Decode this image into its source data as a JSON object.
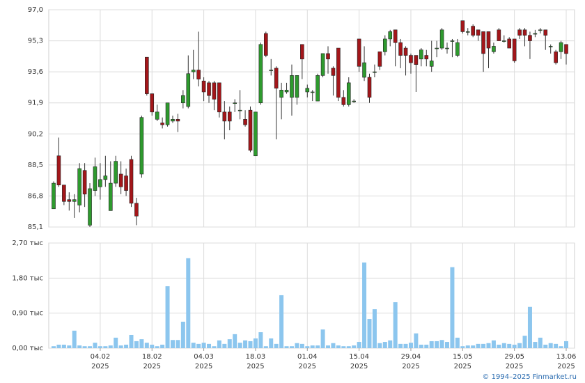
{
  "chart_data": {
    "type": "candlestick",
    "x": [
      "2025-01-22",
      "2025-01-23",
      "2025-01-24",
      "2025-01-27",
      "2025-01-28",
      "2025-01-29",
      "2025-01-30",
      "2025-01-31",
      "2025-02-03",
      "2025-02-04",
      "2025-02-05",
      "2025-02-06",
      "2025-02-07",
      "2025-02-10",
      "2025-02-11",
      "2025-02-12",
      "2025-02-13",
      "2025-02-14",
      "2025-02-17",
      "2025-02-18",
      "2025-02-19",
      "2025-02-20",
      "2025-02-21",
      "2025-02-24",
      "2025-02-25",
      "2025-02-26",
      "2025-02-27",
      "2025-02-28",
      "2025-03-03",
      "2025-03-04",
      "2025-03-05",
      "2025-03-06",
      "2025-03-07",
      "2025-03-10",
      "2025-03-11",
      "2025-03-12",
      "2025-03-13",
      "2025-03-14",
      "2025-03-17",
      "2025-03-18",
      "2025-03-19",
      "2025-03-20",
      "2025-03-21",
      "2025-03-24",
      "2025-03-25",
      "2025-03-26",
      "2025-03-27",
      "2025-03-28",
      "2025-03-31",
      "2025-04-01",
      "2025-04-02",
      "2025-04-03",
      "2025-04-04",
      "2025-04-07",
      "2025-04-08",
      "2025-04-09",
      "2025-04-10",
      "2025-04-11",
      "2025-04-14",
      "2025-04-15",
      "2025-04-16",
      "2025-04-17",
      "2025-04-18",
      "2025-04-21",
      "2025-04-22",
      "2025-04-23",
      "2025-04-24",
      "2025-04-25",
      "2025-04-28",
      "2025-04-29",
      "2025-04-30",
      "2025-05-02",
      "2025-05-05",
      "2025-05-06",
      "2025-05-07",
      "2025-05-08",
      "2025-05-12",
      "2025-05-13",
      "2025-05-14",
      "2025-05-15",
      "2025-05-16",
      "2025-05-19",
      "2025-05-20",
      "2025-05-21",
      "2025-05-22",
      "2025-05-23",
      "2025-05-26",
      "2025-05-27",
      "2025-05-28",
      "2025-05-29",
      "2025-05-30",
      "2025-06-02",
      "2025-06-03",
      "2025-06-04",
      "2025-06-05",
      "2025-06-06",
      "2025-06-09",
      "2025-06-10",
      "2025-06-11",
      "2025-06-13"
    ],
    "open": [
      86.1,
      89.0,
      87.4,
      86.6,
      86.5,
      86.3,
      88.2,
      85.2,
      87.1,
      87.3,
      87.7,
      86.0,
      87.5,
      88.0,
      87.9,
      88.8,
      86.4,
      88.0,
      94.4,
      92.4,
      91.0,
      90.8,
      90.7,
      90.9,
      91.0,
      91.9,
      91.7,
      93.6,
      93.7,
      93.1,
      93.0,
      93.0,
      93.0,
      91.4,
      91.4,
      91.9,
      91.5,
      91.0,
      91.5,
      89.0,
      91.9,
      95.7,
      93.7,
      93.8,
      92.2,
      92.5,
      92.2,
      92.2,
      95.1,
      92.5,
      92.5,
      92.0,
      93.4,
      94.6,
      93.8,
      94.9,
      92.2,
      91.8,
      92.0,
      95.4,
      93.3,
      93.3,
      93.6,
      94.7,
      94.7,
      95.4,
      95.9,
      95.2,
      94.9,
      94.5,
      94.5,
      94.3,
      94.5,
      93.9,
      94.9,
      94.9,
      94.9,
      95.3,
      94.5,
      96.4,
      95.8,
      96.1,
      95.9,
      95.8,
      95.8,
      94.7,
      95.9,
      95.3,
      95.4,
      95.4,
      95.9,
      95.9,
      95.6,
      95.7,
      95.9,
      95.9,
      95.0,
      94.7,
      94.7,
      95.1
    ],
    "high": [
      87.6,
      90.0,
      87.4,
      87.0,
      86.9,
      88.6,
      88.6,
      87.5,
      88.9,
      88.6,
      89.0,
      88.7,
      89.0,
      88.7,
      88.3,
      89.0,
      86.7,
      91.2,
      94.4,
      92.4,
      91.8,
      91.1,
      91.9,
      91.2,
      91.3,
      92.6,
      94.5,
      94.8,
      95.8,
      93.3,
      93.1,
      93.1,
      93.0,
      92.0,
      91.7,
      92.1,
      92.6,
      91.5,
      91.7,
      91.4,
      95.2,
      95.8,
      94.3,
      93.9,
      93.0,
      93.0,
      94.0,
      93.4,
      95.1,
      92.9,
      92.6,
      93.5,
      94.6,
      95.0,
      93.9,
      94.9,
      92.6,
      93.3,
      92.1,
      95.4,
      95.0,
      93.5,
      94.0,
      94.7,
      95.6,
      95.9,
      95.9,
      95.4,
      95.0,
      94.6,
      94.5,
      94.9,
      94.8,
      95.3,
      95.3,
      96.0,
      95.2,
      95.4,
      95.4,
      96.4,
      96.0,
      96.2,
      95.9,
      95.8,
      95.8,
      95.2,
      96.0,
      95.6,
      95.5,
      95.4,
      96.0,
      96.0,
      95.8,
      95.9,
      96.0,
      95.9,
      95.1,
      94.8,
      95.3,
      95.1
    ],
    "low": [
      86.1,
      87.3,
      86.3,
      86.0,
      85.6,
      85.9,
      86.2,
      85.1,
      86.8,
      86.6,
      87.3,
      86.0,
      87.3,
      86.9,
      86.8,
      86.2,
      85.2,
      87.8,
      92.3,
      91.2,
      90.9,
      90.5,
      90.6,
      90.8,
      90.3,
      91.6,
      91.6,
      93.2,
      92.8,
      92.0,
      91.9,
      91.5,
      91.1,
      89.9,
      90.4,
      91.4,
      91.0,
      90.6,
      89.2,
      89.0,
      91.8,
      94.4,
      93.4,
      89.9,
      91.0,
      92.4,
      91.2,
      91.8,
      93.2,
      92.2,
      92.0,
      92.0,
      93.3,
      93.5,
      92.3,
      92.0,
      91.7,
      91.7,
      91.9,
      93.6,
      93.1,
      91.9,
      93.3,
      93.7,
      94.5,
      95.0,
      93.9,
      93.8,
      93.4,
      93.5,
      92.5,
      93.9,
      93.9,
      93.6,
      94.4,
      94.8,
      94.6,
      94.4,
      94.4,
      95.7,
      95.6,
      95.5,
      95.3,
      93.6,
      93.8,
      94.6,
      95.3,
      95.2,
      94.9,
      94.1,
      95.4,
      95.0,
      94.3,
      95.5,
      95.7,
      94.8,
      94.6,
      94.0,
      94.3,
      94.0
    ],
    "close": [
      87.5,
      87.4,
      86.5,
      86.5,
      86.6,
      88.3,
      86.9,
      87.2,
      88.4,
      87.7,
      87.9,
      87.5,
      88.7,
      87.3,
      87.1,
      86.4,
      85.7,
      91.1,
      92.4,
      91.4,
      91.4,
      90.7,
      91.9,
      91.0,
      90.9,
      92.3,
      93.5,
      93.7,
      93.2,
      92.5,
      92.3,
      92.1,
      91.4,
      90.9,
      90.9,
      91.9,
      91.5,
      90.7,
      89.3,
      91.4,
      95.1,
      94.5,
      93.7,
      92.7,
      92.6,
      92.6,
      93.4,
      93.4,
      94.3,
      92.7,
      92.5,
      93.4,
      94.6,
      94.3,
      93.4,
      92.2,
      91.8,
      93.0,
      92.0,
      93.9,
      94.1,
      92.2,
      93.6,
      93.9,
      95.4,
      95.8,
      95.2,
      94.5,
      94.5,
      94.1,
      94.0,
      94.8,
      94.3,
      94.2,
      94.9,
      95.9,
      94.9,
      95.3,
      95.2,
      95.8,
      95.8,
      95.6,
      95.6,
      94.6,
      94.9,
      95.0,
      95.3,
      95.3,
      94.9,
      94.2,
      95.6,
      95.6,
      95.3,
      95.7,
      95.9,
      95.6,
      95.0,
      94.1,
      95.2,
      94.6
    ],
    "up_color": "#2e9a2e",
    "down_color": "#a3161a",
    "ylim": [
      85.1,
      97.0
    ],
    "yticks": [
      {
        "value": 97.0,
        "label": "97,0"
      },
      {
        "value": 95.3,
        "label": "95,3"
      },
      {
        "value": 93.6,
        "label": "93,6"
      },
      {
        "value": 91.9,
        "label": "91,9"
      },
      {
        "value": 90.2,
        "label": "90,2"
      },
      {
        "value": 88.5,
        "label": "88,5"
      },
      {
        "value": 86.8,
        "label": "86,8"
      },
      {
        "value": 85.1,
        "label": "85,1"
      }
    ],
    "xticks": [
      {
        "value": "2025-02-04",
        "label": "04.02\n2025"
      },
      {
        "value": "2025-02-18",
        "label": "18.02\n2025"
      },
      {
        "value": "2025-03-04",
        "label": "04.03\n2025"
      },
      {
        "value": "2025-03-18",
        "label": "18.03\n2025"
      },
      {
        "value": "2025-04-01",
        "label": "01.04\n2025"
      },
      {
        "value": "2025-04-15",
        "label": "15.04\n2025"
      },
      {
        "value": "2025-04-29",
        "label": "29.04\n2025"
      },
      {
        "value": "2025-05-15",
        "label": "15.05\n2025"
      },
      {
        "value": "2025-05-29",
        "label": "29.05\n2025"
      },
      {
        "value": "2025-06-13",
        "label": "13.06\n2025"
      }
    ],
    "grid": true,
    "volume": {
      "type": "bar",
      "color": "#8cc6ee",
      "values": [
        50,
        90,
        90,
        70,
        450,
        70,
        50,
        50,
        140,
        50,
        50,
        70,
        270,
        70,
        90,
        340,
        180,
        230,
        140,
        90,
        50,
        90,
        1590,
        210,
        210,
        680,
        2310,
        140,
        110,
        140,
        110,
        50,
        200,
        110,
        230,
        360,
        140,
        200,
        180,
        250,
        410,
        50,
        250,
        110,
        1360,
        50,
        50,
        130,
        110,
        50,
        70,
        70,
        480,
        70,
        130,
        70,
        50,
        50,
        70,
        160,
        2200,
        750,
        1000,
        130,
        160,
        200,
        1180,
        110,
        110,
        140,
        380,
        90,
        90,
        180,
        180,
        210,
        160,
        2080,
        270,
        50,
        70,
        70,
        110,
        110,
        130,
        200,
        90,
        130,
        110,
        90,
        130,
        320,
        1060,
        160,
        270,
        90,
        130,
        110,
        50,
        180
      ],
      "ylim": [
        0,
        2700
      ],
      "yticks": [
        {
          "value": 2700,
          "label": "2,70 тыс"
        },
        {
          "value": 1800,
          "label": "1,80 тыс"
        },
        {
          "value": 900,
          "label": "0,90 тыс"
        },
        {
          "value": 0,
          "label": "0,00 тыс"
        }
      ]
    },
    "source": "© 1994–2025 Finmarket.ru"
  }
}
